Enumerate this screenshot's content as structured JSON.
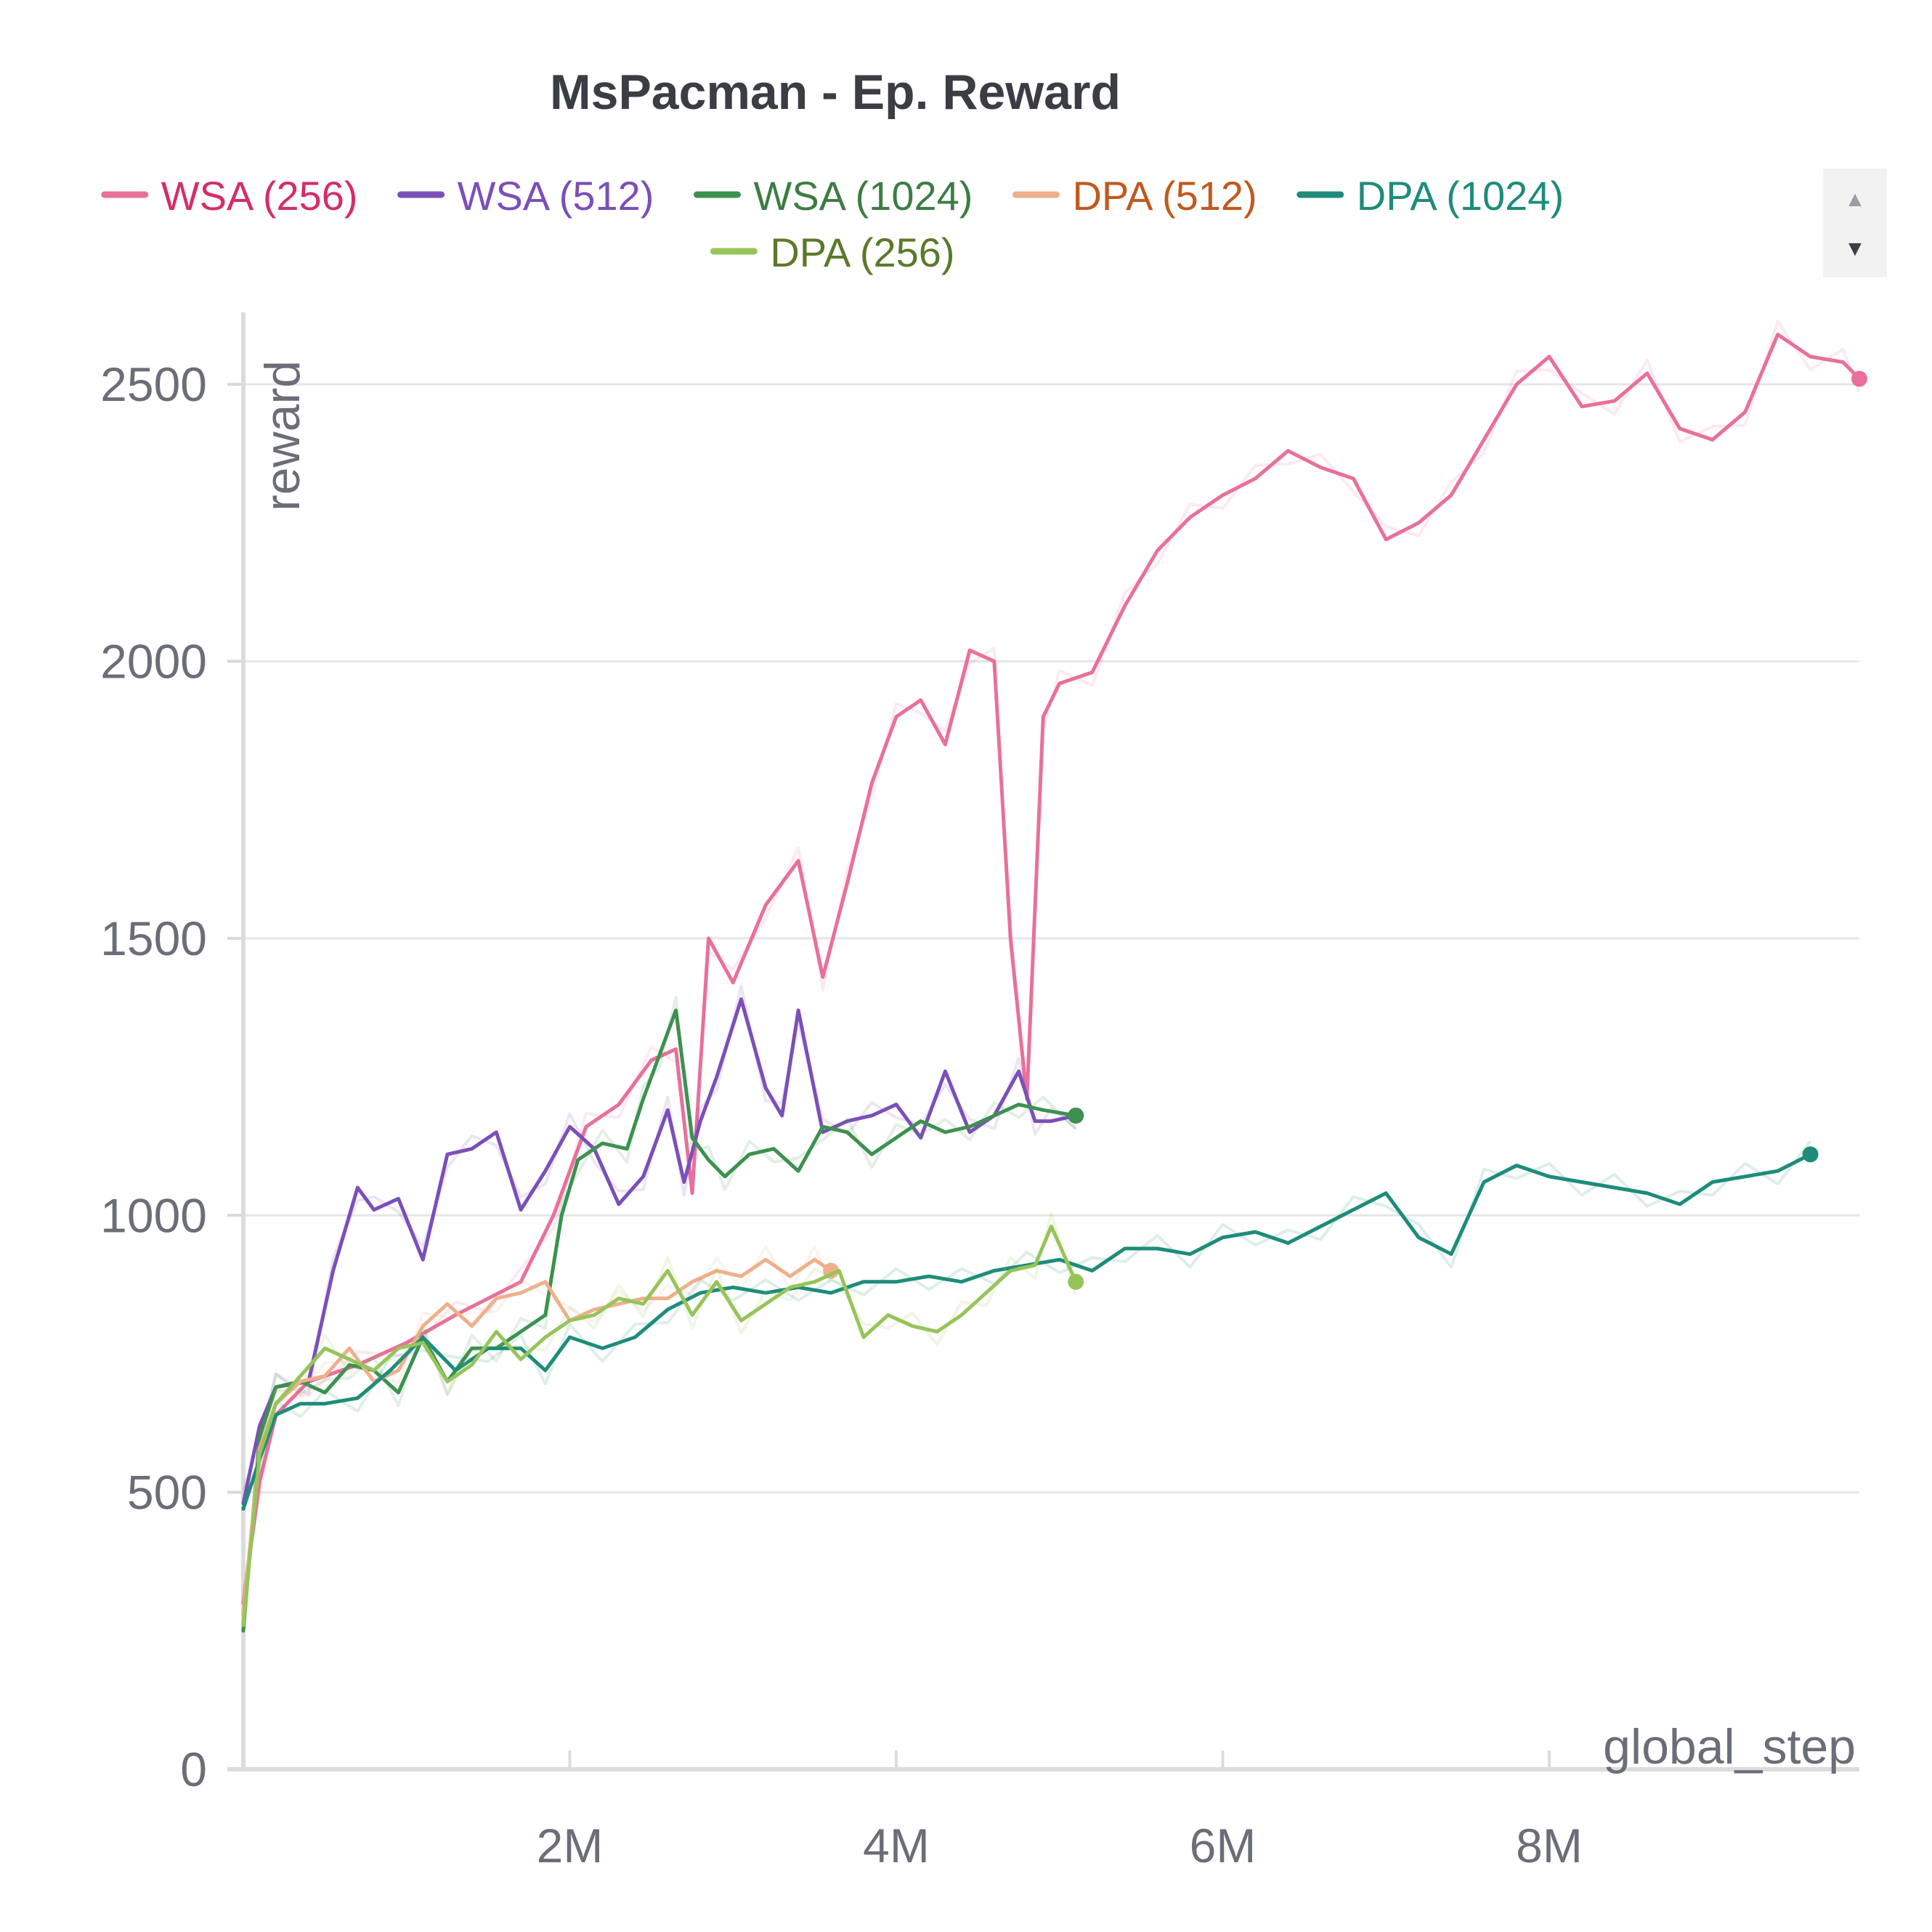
{
  "chart_data": {
    "type": "line",
    "title": "MsPacman - Ep. Reward",
    "xlabel": "global_step",
    "ylabel": "reward",
    "xlim": [
      0,
      9900000
    ],
    "ylim": [
      0,
      2630
    ],
    "x_ticks": [
      {
        "value": 2000000,
        "label": "2M"
      },
      {
        "value": 4000000,
        "label": "4M"
      },
      {
        "value": 6000000,
        "label": "6M"
      },
      {
        "value": 8000000,
        "label": "8M"
      }
    ],
    "y_ticks": [
      {
        "value": 0,
        "label": "0"
      },
      {
        "value": 500,
        "label": "500"
      },
      {
        "value": 1000,
        "label": "1000"
      },
      {
        "value": 1500,
        "label": "1500"
      },
      {
        "value": 2000,
        "label": "2000"
      },
      {
        "value": 2500,
        "label": "2500"
      }
    ],
    "grid": true,
    "legend_position": "top",
    "series": [
      {
        "name": "WSA (256)",
        "color": "#e8709a",
        "text_color": "#d42d6a",
        "x": [
          0,
          100000,
          200000,
          400000,
          700000,
          1000000,
          1300000,
          1500000,
          1700000,
          1900000,
          2100000,
          2300000,
          2500000,
          2650000,
          2750000,
          2850000,
          3000000,
          3200000,
          3400000,
          3550000,
          3700000,
          3850000,
          4000000,
          4150000,
          4300000,
          4450000,
          4600000,
          4700000,
          4800000,
          4900000,
          5000000,
          5200000,
          5400000,
          5600000,
          5800000,
          6000000,
          6200000,
          6400000,
          6600000,
          6800000,
          7000000,
          7200000,
          7400000,
          7600000,
          7800000,
          8000000,
          8200000,
          8400000,
          8600000,
          8800000,
          9000000,
          9200000,
          9400000,
          9600000,
          9800000,
          9900000
        ],
        "y": [
          300,
          520,
          640,
          700,
          730,
          770,
          820,
          850,
          880,
          1000,
          1160,
          1200,
          1280,
          1300,
          1040,
          1500,
          1420,
          1560,
          1640,
          1430,
          1600,
          1780,
          1900,
          1930,
          1850,
          2020,
          2000,
          1500,
          1210,
          1900,
          1960,
          1980,
          2100,
          2200,
          2260,
          2300,
          2330,
          2380,
          2350,
          2330,
          2220,
          2250,
          2300,
          2400,
          2500,
          2550,
          2460,
          2470,
          2520,
          2420,
          2400,
          2450,
          2590,
          2550,
          2540,
          2510
        ]
      },
      {
        "name": "WSA (512)",
        "color": "#7b4fb8",
        "text_color": "#7b4fb8",
        "x": [
          0,
          100000,
          200000,
          400000,
          550000,
          700000,
          800000,
          950000,
          1100000,
          1250000,
          1400000,
          1550000,
          1700000,
          1850000,
          2000000,
          2150000,
          2300000,
          2450000,
          2600000,
          2700000,
          2800000,
          2900000,
          3050000,
          3200000,
          3300000,
          3400000,
          3550000,
          3700000,
          3850000,
          4000000,
          4150000,
          4300000,
          4450000,
          4600000,
          4750000,
          4850000,
          4950000,
          5100000
        ],
        "y": [
          480,
          620,
          690,
          700,
          900,
          1050,
          1010,
          1030,
          920,
          1110,
          1120,
          1150,
          1010,
          1080,
          1160,
          1120,
          1020,
          1070,
          1190,
          1060,
          1170,
          1250,
          1390,
          1230,
          1180,
          1370,
          1150,
          1170,
          1180,
          1200,
          1140,
          1260,
          1150,
          1180,
          1260,
          1170,
          1170,
          1180
        ]
      },
      {
        "name": "WSA (1024)",
        "color": "#3d9150",
        "text_color": "#3d7d45",
        "x": [
          0,
          100000,
          200000,
          350000,
          500000,
          650000,
          800000,
          950000,
          1100000,
          1250000,
          1400000,
          1550000,
          1700000,
          1850000,
          1950000,
          2050000,
          2200000,
          2350000,
          2450000,
          2550000,
          2650000,
          2750000,
          2850000,
          2950000,
          3100000,
          3250000,
          3400000,
          3550000,
          3700000,
          3850000,
          4000000,
          4150000,
          4300000,
          4450000,
          4600000,
          4750000,
          4900000,
          5100000
        ],
        "y": [
          250,
          600,
          690,
          700,
          680,
          730,
          720,
          680,
          780,
          700,
          760,
          760,
          790,
          820,
          1000,
          1100,
          1130,
          1120,
          1210,
          1290,
          1370,
          1140,
          1100,
          1070,
          1110,
          1120,
          1080,
          1160,
          1150,
          1110,
          1140,
          1170,
          1150,
          1160,
          1180,
          1200,
          1190,
          1180
        ]
      },
      {
        "name": "DPA (512)",
        "color": "#eeb08b",
        "text_color": "#c05a1e",
        "x": [
          0,
          100000,
          200000,
          350000,
          500000,
          650000,
          800000,
          950000,
          1100000,
          1250000,
          1400000,
          1550000,
          1700000,
          1850000,
          2000000,
          2150000,
          2300000,
          2450000,
          2600000,
          2750000,
          2900000,
          3050000,
          3200000,
          3350000,
          3500000,
          3600000
        ],
        "y": [
          280,
          580,
          660,
          700,
          710,
          760,
          700,
          720,
          800,
          840,
          800,
          850,
          860,
          880,
          810,
          830,
          840,
          850,
          850,
          880,
          900,
          890,
          920,
          890,
          920,
          900
        ]
      },
      {
        "name": "DPA (1024)",
        "color": "#1e8c7a",
        "text_color": "#1e8c7a",
        "x": [
          0,
          100000,
          200000,
          350000,
          500000,
          700000,
          900000,
          1100000,
          1300000,
          1500000,
          1700000,
          1850000,
          2000000,
          2200000,
          2400000,
          2600000,
          2800000,
          3000000,
          3200000,
          3400000,
          3600000,
          3800000,
          4000000,
          4200000,
          4400000,
          4600000,
          4800000,
          5000000,
          5200000,
          5400000,
          5600000,
          5800000,
          6000000,
          6200000,
          6400000,
          6600000,
          6800000,
          7000000,
          7200000,
          7400000,
          7600000,
          7800000,
          8000000,
          8200000,
          8400000,
          8600000,
          8800000,
          9000000,
          9200000,
          9400000,
          9600000
        ],
        "y": [
          470,
          560,
          640,
          660,
          660,
          670,
          720,
          780,
          720,
          760,
          760,
          720,
          780,
          760,
          780,
          830,
          860,
          870,
          860,
          870,
          860,
          880,
          880,
          890,
          880,
          900,
          910,
          920,
          900,
          940,
          940,
          930,
          960,
          970,
          950,
          980,
          1010,
          1040,
          960,
          930,
          1060,
          1090,
          1070,
          1060,
          1050,
          1040,
          1020,
          1060,
          1070,
          1080,
          1110
        ]
      },
      {
        "name": "DPA (256)",
        "color": "#97c45a",
        "text_color": "#5a7a2a",
        "x": [
          0,
          100000,
          200000,
          350000,
          500000,
          650000,
          800000,
          950000,
          1100000,
          1250000,
          1400000,
          1550000,
          1700000,
          1850000,
          2000000,
          2150000,
          2300000,
          2450000,
          2600000,
          2750000,
          2900000,
          3050000,
          3200000,
          3350000,
          3500000,
          3650000,
          3800000,
          3950000,
          4100000,
          4250000,
          4400000,
          4550000,
          4700000,
          4850000,
          4950000,
          5100000
        ],
        "y": [
          260,
          570,
          660,
          710,
          760,
          740,
          720,
          760,
          770,
          700,
          730,
          790,
          740,
          780,
          810,
          820,
          850,
          840,
          900,
          820,
          880,
          810,
          840,
          870,
          880,
          900,
          780,
          820,
          800,
          790,
          820,
          860,
          900,
          910,
          980,
          880
        ]
      }
    ]
  },
  "legend": {
    "scroll_up_label": "▲",
    "scroll_down_label": "▼"
  }
}
